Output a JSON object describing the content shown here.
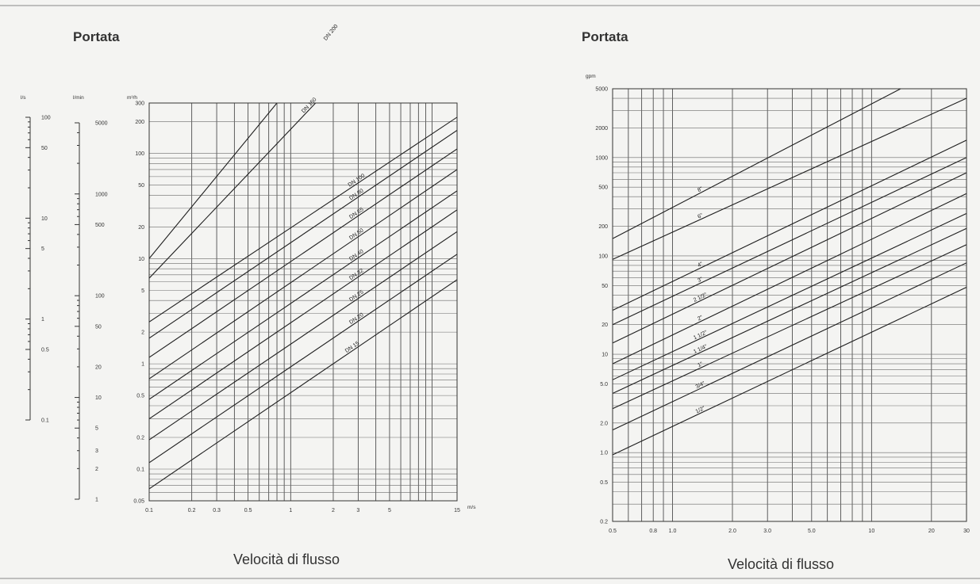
{
  "chart_data": [
    {
      "type": "line",
      "title": "Portata",
      "xlabel": "Velocità di flusso",
      "x_unit": "m/s",
      "y_unit": "m³/h",
      "x_scale": "log",
      "y_scale": "log",
      "xlim": [
        0.1,
        15
      ],
      "ylim": [
        0.05,
        300
      ],
      "grid": true,
      "x_ticks": [
        {
          "v": 0.1,
          "t": "0.1"
        },
        {
          "v": 0.2,
          "t": "0.2"
        },
        {
          "v": 0.3,
          "t": "0.3"
        },
        {
          "v": 0.5,
          "t": "0.5"
        },
        {
          "v": 1,
          "t": "1"
        },
        {
          "v": 2,
          "t": "2"
        },
        {
          "v": 3,
          "t": "3"
        },
        {
          "v": 5,
          "t": "5"
        },
        {
          "v": 15,
          "t": "15"
        }
      ],
      "y_ticks": [
        {
          "v": 0.05,
          "t": "0.05"
        },
        {
          "v": 0.1,
          "t": "0.1"
        },
        {
          "v": 0.2,
          "t": "0.2"
        },
        {
          "v": 0.5,
          "t": "0.5"
        },
        {
          "v": 1,
          "t": "1"
        },
        {
          "v": 2,
          "t": "2"
        },
        {
          "v": 5,
          "t": "5"
        },
        {
          "v": 10,
          "t": "10"
        },
        {
          "v": 20,
          "t": "20"
        },
        {
          "v": 50,
          "t": "50"
        },
        {
          "v": 100,
          "t": "100"
        },
        {
          "v": 200,
          "t": "200"
        },
        {
          "v": 300,
          "t": "300"
        }
      ],
      "series": [
        {
          "name": "DN 200",
          "x": [
            0.1,
            0.8
          ],
          "y": [
            10.0,
            300
          ]
        },
        {
          "name": "DN 150",
          "x": [
            0.1,
            1.5
          ],
          "y": [
            6.5,
            300
          ]
        },
        {
          "name": "DN 100",
          "x": [
            0.1,
            15
          ],
          "y": [
            2.5,
            220
          ]
        },
        {
          "name": "DN 80",
          "x": [
            0.1,
            15
          ],
          "y": [
            1.75,
            165
          ]
        },
        {
          "name": "DN 65",
          "x": [
            0.1,
            15
          ],
          "y": [
            1.15,
            110
          ]
        },
        {
          "name": "DN 50",
          "x": [
            0.1,
            15
          ],
          "y": [
            0.72,
            70
          ]
        },
        {
          "name": "DN 40",
          "x": [
            0.1,
            15
          ],
          "y": [
            0.46,
            44
          ]
        },
        {
          "name": "DN 32",
          "x": [
            0.1,
            15
          ],
          "y": [
            0.3,
            29
          ]
        },
        {
          "name": "DN 25",
          "x": [
            0.1,
            15
          ],
          "y": [
            0.19,
            18
          ]
        },
        {
          "name": "DN 20",
          "x": [
            0.1,
            15
          ],
          "y": [
            0.115,
            11
          ]
        },
        {
          "name": "DN 15",
          "x": [
            0.1,
            15
          ],
          "y": [
            0.065,
            6.3
          ]
        }
      ],
      "companion_scales": [
        {
          "unit": "l/s",
          "range": [
            0.1,
            100
          ],
          "ticks": [
            {
              "v": 100,
              "t": "100"
            },
            {
              "v": 50,
              "t": "50"
            },
            {
              "v": 10,
              "t": "10"
            },
            {
              "v": 5,
              "t": "5"
            },
            {
              "v": 1,
              "t": "1"
            },
            {
              "v": 0.5,
              "t": "0.5"
            },
            {
              "v": 0.1,
              "t": "0.1"
            }
          ]
        },
        {
          "unit": "l/min",
          "range": [
            1,
            5000
          ],
          "ticks": [
            {
              "v": 5000,
              "t": "5000"
            },
            {
              "v": 1000,
              "t": "1000"
            },
            {
              "v": 500,
              "t": "500"
            },
            {
              "v": 100,
              "t": "100"
            },
            {
              "v": 50,
              "t": "50"
            },
            {
              "v": 20,
              "t": "20"
            },
            {
              "v": 10,
              "t": "10"
            },
            {
              "v": 5,
              "t": "5"
            },
            {
              "v": 3,
              "t": "3"
            },
            {
              "v": 2,
              "t": "2"
            },
            {
              "v": 1,
              "t": "1"
            }
          ]
        }
      ]
    },
    {
      "type": "line",
      "title": "Portata",
      "xlabel": "Velocità di flusso",
      "y_unit": "gpm",
      "x_scale": "log",
      "y_scale": "log",
      "xlim": [
        0.5,
        30
      ],
      "ylim": [
        0.2,
        5000
      ],
      "grid": true,
      "x_ticks": [
        {
          "v": 0.5,
          "t": "0.5"
        },
        {
          "v": 0.8,
          "t": "0.8"
        },
        {
          "v": 1,
          "t": "1.0"
        },
        {
          "v": 2,
          "t": "2.0"
        },
        {
          "v": 3,
          "t": "3.0"
        },
        {
          "v": 5,
          "t": "5.0"
        },
        {
          "v": 10,
          "t": "10"
        },
        {
          "v": 20,
          "t": "20"
        },
        {
          "v": 30,
          "t": "30"
        }
      ],
      "y_ticks": [
        {
          "v": 0.2,
          "t": "0.2"
        },
        {
          "v": 0.5,
          "t": "0.5"
        },
        {
          "v": 1,
          "t": "1.0"
        },
        {
          "v": 2,
          "t": "2.0"
        },
        {
          "v": 5,
          "t": "5.0"
        },
        {
          "v": 10,
          "t": "10"
        },
        {
          "v": 20,
          "t": "20"
        },
        {
          "v": 50,
          "t": "50"
        },
        {
          "v": 100,
          "t": "100"
        },
        {
          "v": 200,
          "t": "200"
        },
        {
          "v": 500,
          "t": "500"
        },
        {
          "v": 1000,
          "t": "1000"
        },
        {
          "v": 2000,
          "t": "2000"
        },
        {
          "v": 5000,
          "t": "5000"
        }
      ],
      "series": [
        {
          "name": "8\"",
          "x": [
            0.5,
            14
          ],
          "y": [
            150,
            5000
          ]
        },
        {
          "name": "6\"",
          "x": [
            0.5,
            30
          ],
          "y": [
            92,
            4000
          ]
        },
        {
          "name": "4\"",
          "x": [
            0.5,
            30
          ],
          "y": [
            28,
            1500
          ]
        },
        {
          "name": "3\"",
          "x": [
            0.5,
            30
          ],
          "y": [
            20,
            1000
          ]
        },
        {
          "name": "2 1/2\"",
          "x": [
            0.5,
            30
          ],
          "y": [
            13,
            700
          ]
        },
        {
          "name": "2\"",
          "x": [
            0.5,
            30
          ],
          "y": [
            8,
            430
          ]
        },
        {
          "name": "1 1/2\"",
          "x": [
            0.5,
            30
          ],
          "y": [
            5.5,
            270
          ]
        },
        {
          "name": "1 1/4\"",
          "x": [
            0.5,
            30
          ],
          "y": [
            4,
            190
          ]
        },
        {
          "name": "1\"",
          "x": [
            0.5,
            30
          ],
          "y": [
            2.8,
            130
          ]
        },
        {
          "name": "3/4\"",
          "x": [
            0.5,
            30
          ],
          "y": [
            1.7,
            85
          ]
        },
        {
          "name": "1/2\"",
          "x": [
            0.5,
            30
          ],
          "y": [
            0.95,
            48
          ]
        }
      ]
    }
  ]
}
